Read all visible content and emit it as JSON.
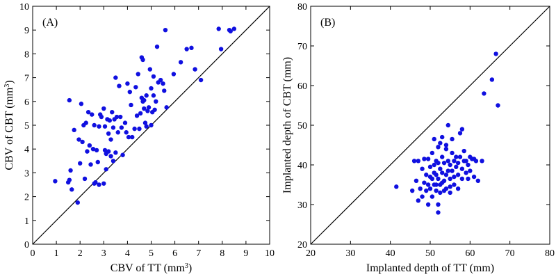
{
  "chart_data": [
    {
      "type": "scatter",
      "panel_label": "(A)",
      "xlabel": "CBV of TT (mm",
      "xlabel_sup": "3",
      "xlabel_end": ")",
      "ylabel": "CBV of CBT (mm",
      "ylabel_sup": "3",
      "ylabel_end": ")",
      "xlim": [
        0,
        10
      ],
      "ylim": [
        0,
        10
      ],
      "xticks": [
        0,
        1,
        2,
        3,
        4,
        5,
        6,
        7,
        8,
        9,
        10
      ],
      "yticks": [
        0,
        1,
        2,
        3,
        4,
        5,
        6,
        7,
        8,
        9,
        10
      ],
      "reference_line": "y = x",
      "marker_color": "#1010e0",
      "x": [
        0.95,
        1.5,
        1.55,
        1.55,
        1.6,
        1.65,
        1.75,
        1.9,
        1.95,
        2.0,
        2.05,
        2.1,
        2.15,
        2.2,
        2.25,
        2.3,
        2.35,
        2.4,
        2.45,
        2.5,
        2.55,
        2.6,
        2.6,
        2.65,
        2.7,
        2.75,
        2.8,
        2.8,
        2.85,
        2.9,
        3.0,
        3.0,
        3.05,
        3.05,
        3.1,
        3.1,
        3.15,
        3.2,
        3.2,
        3.25,
        3.3,
        3.3,
        3.35,
        3.4,
        3.4,
        3.45,
        3.5,
        3.5,
        3.55,
        3.6,
        3.65,
        3.7,
        3.75,
        3.8,
        3.9,
        3.95,
        4.0,
        4.05,
        4.1,
        4.15,
        4.2,
        4.3,
        4.35,
        4.4,
        4.45,
        4.5,
        4.55,
        4.6,
        4.6,
        4.65,
        4.65,
        4.7,
        4.7,
        4.75,
        4.8,
        4.8,
        4.85,
        4.9,
        4.95,
        5.0,
        5.0,
        5.05,
        5.1,
        5.1,
        5.15,
        5.2,
        5.25,
        5.3,
        5.4,
        5.5,
        5.55,
        5.6,
        5.65,
        5.95,
        6.25,
        6.5,
        6.7,
        6.85,
        7.1,
        7.85,
        7.95,
        8.3,
        8.35,
        8.5
      ],
      "y": [
        2.65,
        2.6,
        6.05,
        2.7,
        3.1,
        2.3,
        4.8,
        1.75,
        4.4,
        3.4,
        5.9,
        4.3,
        5.0,
        2.75,
        5.1,
        3.9,
        5.55,
        4.15,
        3.35,
        5.45,
        4.0,
        2.55,
        5.0,
        2.6,
        3.95,
        3.45,
        2.5,
        4.95,
        5.45,
        5.35,
        2.55,
        5.7,
        3.95,
        4.95,
        3.8,
        3.15,
        5.25,
        4.65,
        3.9,
        5.2,
        4.4,
        3.7,
        5.55,
        3.5,
        4.9,
        5.25,
        7.0,
        3.85,
        5.35,
        4.7,
        6.65,
        5.35,
        4.9,
        3.75,
        5.1,
        4.7,
        6.75,
        4.5,
        6.4,
        5.85,
        4.5,
        4.85,
        6.6,
        5.4,
        7.15,
        4.85,
        5.5,
        7.85,
        6.15,
        7.75,
        6.0,
        6.05,
        5.7,
        5.1,
        6.25,
        4.95,
        5.6,
        5.75,
        7.35,
        6.55,
        5.0,
        5.55,
        6.25,
        7.05,
        5.65,
        6.0,
        8.3,
        6.8,
        6.9,
        6.75,
        6.45,
        9.0,
        5.75,
        7.15,
        7.65,
        8.2,
        8.25,
        7.35,
        6.9,
        9.05,
        8.2,
        9.0,
        8.95,
        9.05
      ]
    },
    {
      "type": "scatter",
      "panel_label": "(B)",
      "xlabel": "Implanted depth of TT (mm)",
      "ylabel": "Implanted depth of CBT (mm)",
      "xlim": [
        20,
        80
      ],
      "ylim": [
        20,
        80
      ],
      "xticks": [
        20,
        30,
        40,
        50,
        60,
        70,
        80
      ],
      "yticks": [
        20,
        30,
        40,
        50,
        60,
        70,
        80
      ],
      "reference_line": "y = x",
      "marker_color": "#1010e0",
      "x": [
        41.5,
        45.5,
        46.0,
        46.5,
        47.0,
        47.0,
        47.5,
        48.0,
        48.0,
        48.5,
        48.5,
        49.0,
        49.0,
        49.5,
        49.5,
        49.5,
        50.0,
        50.0,
        50.0,
        50.5,
        50.5,
        50.5,
        51.0,
        51.0,
        51.0,
        51.0,
        51.5,
        51.5,
        51.5,
        51.5,
        52.0,
        52.0,
        52.0,
        52.0,
        52.0,
        52.5,
        52.5,
        52.5,
        52.5,
        53.0,
        53.0,
        53.0,
        53.0,
        53.5,
        53.5,
        53.5,
        54.0,
        54.0,
        54.0,
        54.0,
        54.5,
        54.5,
        54.5,
        55.0,
        55.0,
        55.0,
        55.0,
        55.5,
        55.5,
        55.5,
        56.0,
        56.0,
        56.0,
        56.5,
        56.5,
        57.0,
        57.0,
        57.0,
        57.5,
        57.5,
        58.0,
        58.0,
        58.0,
        58.5,
        58.5,
        59.0,
        59.0,
        59.5,
        59.5,
        60.0,
        60.0,
        60.5,
        61.0,
        61.0,
        61.5,
        62.0,
        63.0,
        63.5,
        65.5,
        66.5,
        67.0
      ],
      "y": [
        34.5,
        33.5,
        41.0,
        36.0,
        31.0,
        41.0,
        34.0,
        39.0,
        32.0,
        41.5,
        35.5,
        37.5,
        33.5,
        41.5,
        35.0,
        30.0,
        37.0,
        34.0,
        39.5,
        36.5,
        32.0,
        43.0,
        38.0,
        35.0,
        40.0,
        46.5,
        37.5,
        33.5,
        35.0,
        41.0,
        36.5,
        30.0,
        28.0,
        40.5,
        44.5,
        39.0,
        35.0,
        45.5,
        33.0,
        47.0,
        38.0,
        42.0,
        35.5,
        36.0,
        40.5,
        33.5,
        44.0,
        37.5,
        34.0,
        45.0,
        50.0,
        38.5,
        41.0,
        36.5,
        40.0,
        34.5,
        33.0,
        43.0,
        38.5,
        46.5,
        41.0,
        37.0,
        35.0,
        42.0,
        39.5,
        40.5,
        37.5,
        34.0,
        48.0,
        42.0,
        49.0,
        39.0,
        36.5,
        43.5,
        41.0,
        41.0,
        38.0,
        40.0,
        36.5,
        38.5,
        42.0,
        41.5,
        37.0,
        41.5,
        41.0,
        36.0,
        41.0,
        58.0,
        61.5,
        68.0,
        55.0
      ]
    }
  ]
}
